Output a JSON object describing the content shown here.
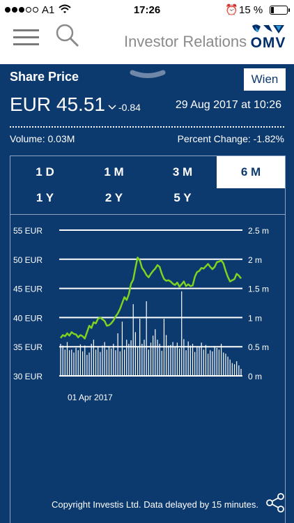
{
  "status_bar": {
    "carrier": "A1",
    "time": "17:26",
    "battery": "15 %"
  },
  "header": {
    "title": "Investor Relations",
    "logo_text": "OMV"
  },
  "panel": {
    "title": "Share Price",
    "exchange": "Wien",
    "price": "EUR 45.51",
    "change": "-0.84",
    "timestamp": "29 Aug 2017 at 10:26",
    "volume": "Volume:  0.03M",
    "percent_change": "Percent Change:  -1.82%",
    "tabs": [
      {
        "label": "1 D",
        "active": false
      },
      {
        "label": "1 M",
        "active": false
      },
      {
        "label": "3 M",
        "active": false
      },
      {
        "label": "6 M",
        "active": true
      },
      {
        "label": "1 Y",
        "active": false
      },
      {
        "label": "2 Y",
        "active": false
      },
      {
        "label": "5 Y",
        "active": false
      }
    ],
    "footer": "Copyright Investis Ltd. Data delayed by 15 minutes."
  },
  "colors": {
    "panel_bg": "#0d3a6e",
    "price_line": "#7ed321",
    "brand": "#002e6d"
  },
  "chart_data": {
    "type": "line",
    "x_label_shown": "01 Apr 2017",
    "y_left": {
      "ticks": [
        "30 EUR",
        "35 EUR",
        "40 EUR",
        "45 EUR",
        "50 EUR",
        "55 EUR"
      ],
      "range": [
        30,
        55
      ]
    },
    "y_right": {
      "ticks": [
        "0 m",
        "0.5 m",
        "1 m",
        "1.5 m",
        "2 m",
        "2.5 m"
      ],
      "range": [
        0,
        2.5
      ]
    },
    "grid": true,
    "series": [
      {
        "kind": "line",
        "values": [
          36.5,
          37.0,
          36.8,
          37.3,
          36.9,
          37.5,
          37.2,
          37.1,
          36.6,
          37.0,
          36.8,
          36.4,
          37.5,
          38.6,
          38.2,
          39.2,
          39.0,
          39.8,
          40.0,
          39.7,
          39.4,
          38.6,
          38.7,
          39.0,
          39.5,
          40.2,
          40.7,
          41.5,
          42.5,
          43.5,
          43.0,
          44.0,
          45.8,
          46.5,
          48.5,
          50.3,
          49.8,
          48.5,
          48.0,
          47.3,
          46.9,
          47.5,
          48.0,
          48.4,
          49.0,
          48.7,
          47.5,
          46.6,
          46.3,
          46.4,
          46.2,
          45.8,
          45.6,
          46.0,
          45.3,
          45.7,
          46.2,
          45.4,
          45.7,
          45.4,
          45.5,
          47.0,
          47.8,
          48.0,
          48.5,
          48.4,
          48.8,
          49.2,
          48.7,
          48.3,
          48.7,
          49.5,
          49.6,
          49.8,
          49.3,
          48.0,
          47.0,
          46.2,
          46.4,
          46.6,
          47.5,
          47.2,
          46.7
        ]
      },
      {
        "kind": "bar",
        "values": [
          0.55,
          0.52,
          0.45,
          0.58,
          0.44,
          0.45,
          0.4,
          0.48,
          0.44,
          0.54,
          0.42,
          0.52,
          0.36,
          0.4,
          0.55,
          0.62,
          0.45,
          0.5,
          0.41,
          0.52,
          0.58,
          0.45,
          0.5,
          0.47,
          0.55,
          0.44,
          0.73,
          0.42,
          0.93,
          0.45,
          0.62,
          0.55,
          0.61,
          1.23,
          0.75,
          0.5,
          0.98,
          0.55,
          0.62,
          1.28,
          0.45,
          0.57,
          0.69,
          0.8,
          0.62,
          0.55,
          0.43,
          0.98,
          0.7,
          0.52,
          0.53,
          0.58,
          0.5,
          0.57,
          0.47,
          1.45,
          0.63,
          0.44,
          0.59,
          0.52,
          0.55,
          0.41,
          0.5,
          0.49,
          0.57,
          0.45,
          0.53,
          0.38,
          0.44,
          0.42,
          0.51,
          0.48,
          0.45,
          0.55,
          0.4,
          0.38,
          0.33,
          0.28,
          0.22,
          0.2,
          0.25,
          0.18,
          0.12
        ]
      }
    ]
  }
}
